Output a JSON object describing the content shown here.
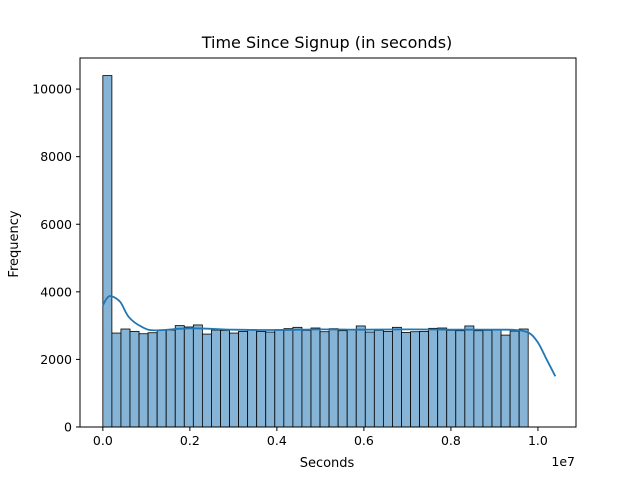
{
  "chart_data": {
    "type": "bar",
    "title": "Time Since Signup (in seconds)",
    "xlabel": "Seconds",
    "ylabel": "Frequency",
    "x_offset_label": "1e7",
    "xlim": [
      -0.0525,
      1.0875
    ],
    "ylim": [
      0,
      10920
    ],
    "x_ticks": [
      0.0,
      0.2,
      0.4,
      0.6,
      0.8,
      1.0
    ],
    "x_tick_labels": [
      "0.0",
      "0.2",
      "0.4",
      "0.6",
      "0.8",
      "1.0"
    ],
    "y_ticks": [
      0,
      2000,
      4000,
      6000,
      8000,
      10000
    ],
    "y_tick_labels": [
      "0",
      "2000",
      "4000",
      "6000",
      "8000",
      "10000"
    ],
    "bins": {
      "start": 0.0,
      "width": 0.0208,
      "counts": [
        10400,
        2780,
        2900,
        2830,
        2760,
        2790,
        2870,
        2870,
        3000,
        2960,
        3020,
        2750,
        2870,
        2860,
        2780,
        2830,
        2880,
        2830,
        2810,
        2880,
        2910,
        2950,
        2860,
        2930,
        2820,
        2910,
        2850,
        2880,
        2990,
        2810,
        2860,
        2830,
        2950,
        2800,
        2820,
        2830,
        2920,
        2930,
        2860,
        2850,
        2990,
        2850,
        2860,
        2870,
        2720,
        2840,
        2900
      ]
    },
    "kde": {
      "x": [
        0.0,
        0.01,
        0.02,
        0.04,
        0.06,
        0.09,
        0.12,
        0.2,
        0.3,
        0.4,
        0.5,
        0.6,
        0.7,
        0.8,
        0.9,
        0.95,
        0.98,
        1.0,
        1.02,
        1.04
      ],
      "y": [
        3600,
        3820,
        3870,
        3700,
        3250,
        2960,
        2860,
        2920,
        2880,
        2870,
        2890,
        2880,
        2890,
        2880,
        2880,
        2870,
        2780,
        2500,
        2000,
        1500
      ]
    },
    "colors": {
      "bar_fill": "#86b4d6",
      "bar_edge": "#000000",
      "kde_line": "#1f77b4"
    },
    "grid": false,
    "legend": "none"
  }
}
